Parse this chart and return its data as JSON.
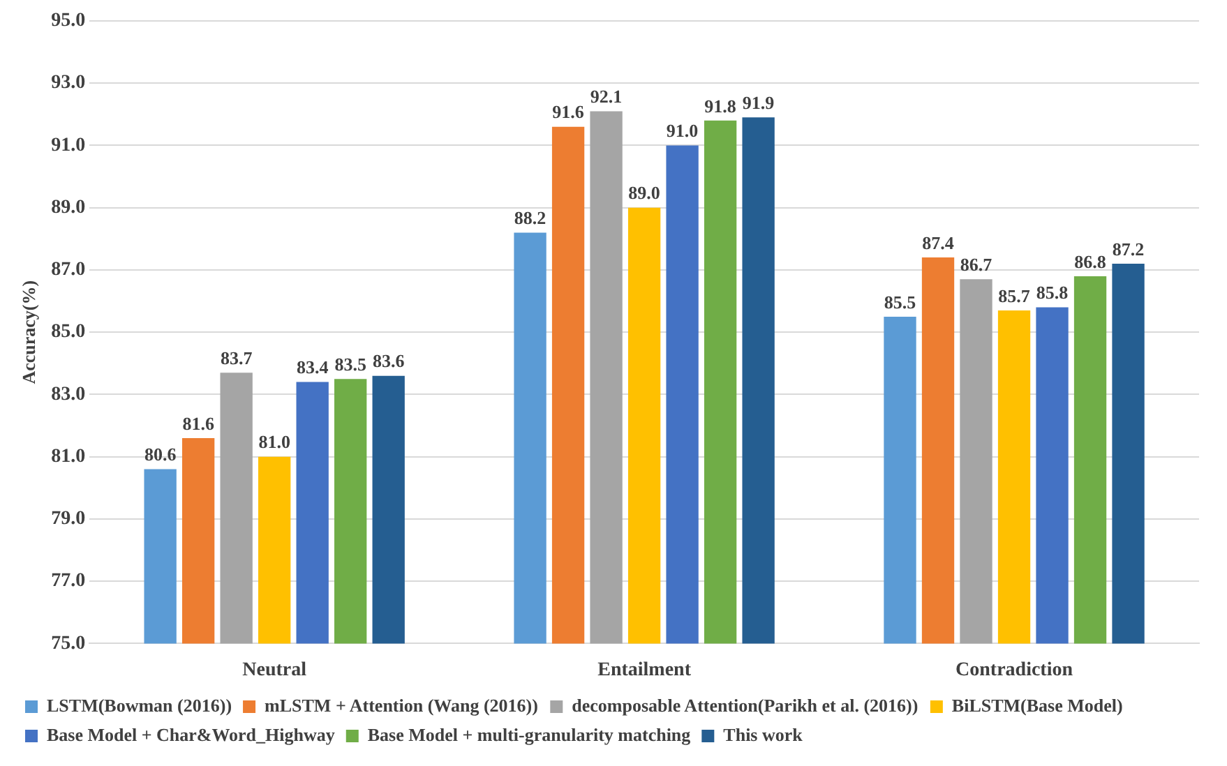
{
  "chart_data": {
    "type": "bar",
    "ylabel": "Accuracy(%)",
    "categories": [
      "Neutral",
      "Entailment",
      "Contradiction"
    ],
    "series": [
      {
        "name": "LSTM(Bowman (2016))",
        "color": "#5b9bd5",
        "values": [
          80.6,
          88.2,
          85.5
        ],
        "value_labels": [
          "80.6",
          "88.2",
          "85.5"
        ]
      },
      {
        "name": "mLSTM + Attention (Wang (2016))",
        "color": "#ed7d31",
        "values": [
          81.6,
          91.6,
          87.4
        ],
        "value_labels": [
          "81.6",
          "91.6",
          "87.4"
        ]
      },
      {
        "name": "decomposable Attention(Parikh et al. (2016))",
        "color": "#a5a5a5",
        "values": [
          83.7,
          92.1,
          86.7
        ],
        "value_labels": [
          "83.7",
          "92.1",
          "86.7"
        ]
      },
      {
        "name": "BiLSTM(Base Model)",
        "color": "#ffc000",
        "values": [
          81.0,
          89.0,
          85.7
        ],
        "value_labels": [
          "81.0",
          "89.0",
          "85.7"
        ]
      },
      {
        "name": "Base Model + Char&Word_Highway",
        "color": "#4472c4",
        "values": [
          83.4,
          91.0,
          85.8
        ],
        "value_labels": [
          "83.4",
          "91.0",
          "85.8"
        ]
      },
      {
        "name": "Base Model + multi-granularity matching",
        "color": "#70ad47",
        "values": [
          83.5,
          91.8,
          86.8
        ],
        "value_labels": [
          "83.5",
          "91.8",
          "86.8"
        ]
      },
      {
        "name": "This work",
        "color": "#255e91",
        "values": [
          83.6,
          91.9,
          87.2
        ],
        "value_labels": [
          "83.6",
          "91.9",
          "87.2"
        ]
      }
    ],
    "ylim": [
      75,
      95
    ],
    "yticks": [
      {
        "value": 75,
        "label": "75.0"
      },
      {
        "value": 77,
        "label": "77.0"
      },
      {
        "value": 79,
        "label": "79.0"
      },
      {
        "value": 81,
        "label": "81.0"
      },
      {
        "value": 83,
        "label": "83.0"
      },
      {
        "value": 85,
        "label": "85.0"
      },
      {
        "value": 87,
        "label": "87.0"
      },
      {
        "value": 89,
        "label": "89.0"
      },
      {
        "value": 91,
        "label": "91.0"
      },
      {
        "value": 93,
        "label": "93.0"
      },
      {
        "value": 95,
        "label": "95.0"
      }
    ],
    "grid": "y",
    "legend": "bottom"
  }
}
